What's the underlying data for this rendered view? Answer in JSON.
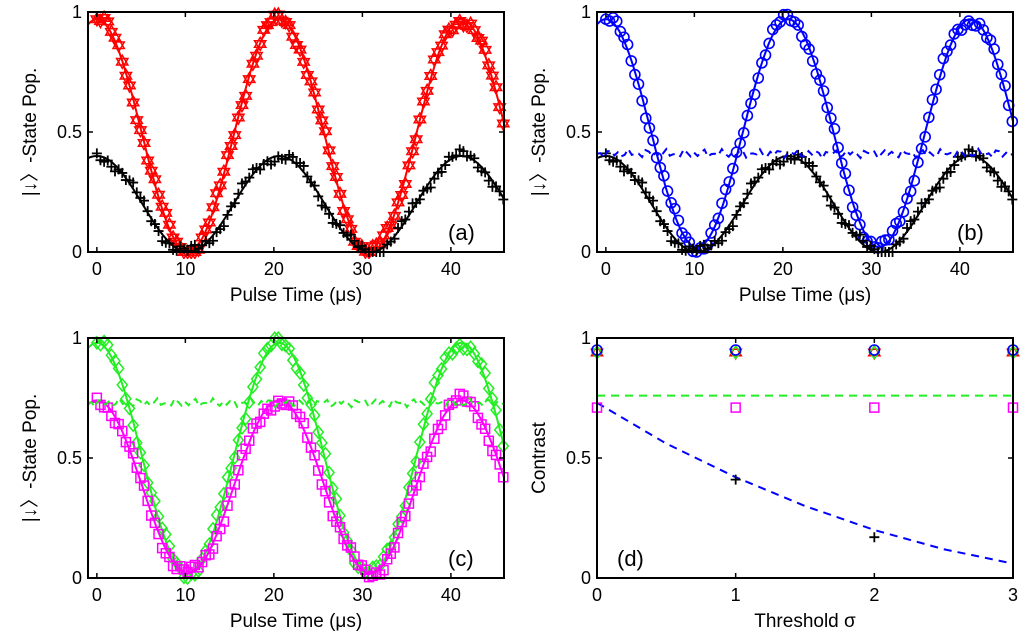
{
  "colors": {
    "red": "#ff0000",
    "blue": "#0000ff",
    "green": "#22ee22",
    "magenta": "#ff00ff",
    "black": "#000000"
  },
  "chart_data": [
    {
      "type": "scatter",
      "panel_label": "(a)",
      "xlabel": "Pulse Time (μs)",
      "ylabel": "|↓〉-State Pop.",
      "xlim": [
        -1,
        46
      ],
      "ylim": [
        0,
        1
      ],
      "xticks": [
        0,
        10,
        20,
        30,
        40
      ],
      "xtick_labels": [
        "0",
        "10",
        "20",
        "30",
        "40"
      ],
      "yticks": [
        0,
        0.5,
        1
      ],
      "ytick_labels": [
        "0",
        "0.5",
        "1"
      ],
      "series": [
        {
          "color": "red",
          "marker": "hexagram",
          "fit": "solid",
          "fit_model": {
            "period": 20.6,
            "low": 0.0,
            "high": 0.97,
            "phase": 0.0
          }
        },
        {
          "color": "black",
          "marker": "plus",
          "fit": "solid",
          "fit_model": {
            "period": 20.6,
            "low": 0.0,
            "high": 0.4,
            "phase": 0.0
          }
        }
      ]
    },
    {
      "type": "scatter",
      "panel_label": "(b)",
      "xlabel": "Pulse Time (μs)",
      "ylabel": "|↓〉-State Pop.",
      "xlim": [
        -1,
        46
      ],
      "ylim": [
        0,
        1
      ],
      "xticks": [
        0,
        10,
        20,
        30,
        40
      ],
      "xtick_labels": [
        "0",
        "10",
        "20",
        "30",
        "40"
      ],
      "yticks": [
        0,
        0.5,
        1
      ],
      "ytick_labels": [
        "0",
        "0.5",
        "1"
      ],
      "series": [
        {
          "color": "blue",
          "marker": "circle",
          "fit": "solid",
          "fit_model": {
            "period": 20.6,
            "low": 0.02,
            "high": 0.97,
            "phase": 0.0
          }
        },
        {
          "color": "black",
          "marker": "plus",
          "fit": "solid",
          "fit_model": {
            "period": 20.6,
            "low": 0.0,
            "high": 0.4,
            "phase": 0.0
          }
        },
        {
          "color": "blue",
          "marker": "none",
          "fit": "dashed",
          "flat_level": 0.41
        }
      ]
    },
    {
      "type": "scatter",
      "panel_label": "(c)",
      "xlabel": "Pulse Time (μs)",
      "ylabel": "|↓〉-State Pop.",
      "xlim": [
        -1,
        46
      ],
      "ylim": [
        0,
        1
      ],
      "xticks": [
        0,
        10,
        20,
        30,
        40
      ],
      "xtick_labels": [
        "0",
        "10",
        "20",
        "30",
        "40"
      ],
      "yticks": [
        0,
        0.5,
        1
      ],
      "ytick_labels": [
        "0",
        "0.5",
        "1"
      ],
      "series": [
        {
          "color": "green",
          "marker": "diamond",
          "fit": "solid",
          "fit_model": {
            "period": 20.6,
            "low": 0.02,
            "high": 0.98,
            "phase": 0.0
          }
        },
        {
          "color": "magenta",
          "marker": "square",
          "fit": "solid",
          "fit_model": {
            "period": 20.6,
            "low": 0.02,
            "high": 0.74,
            "phase": 0.0
          }
        },
        {
          "color": "green",
          "marker": "none",
          "fit": "dashed",
          "flat_level": 0.73
        }
      ]
    },
    {
      "type": "scatter",
      "panel_label": "(d)",
      "xlabel": "Threshold σ",
      "ylabel": "Contrast",
      "xlim": [
        0,
        3
      ],
      "ylim": [
        0,
        1
      ],
      "xticks": [
        0,
        1,
        2,
        3
      ],
      "xtick_labels": [
        "0",
        "1",
        "2",
        "3"
      ],
      "yticks": [
        0,
        0.5,
        1
      ],
      "ytick_labels": [
        "0",
        "0.5",
        "1"
      ],
      "points": [
        {
          "color": "red",
          "marker": "hexagram",
          "x": [
            0,
            1,
            2,
            3
          ],
          "y": [
            0.94,
            0.94,
            0.94,
            0.94
          ]
        },
        {
          "color": "green",
          "marker": "diamond",
          "x": [
            0,
            1,
            2,
            3
          ],
          "y": [
            0.94,
            0.94,
            0.94,
            0.94
          ]
        },
        {
          "color": "blue",
          "marker": "circle",
          "x": [
            0,
            1,
            2,
            3
          ],
          "y": [
            0.95,
            0.95,
            0.95,
            0.95
          ]
        },
        {
          "color": "magenta",
          "marker": "square",
          "x": [
            0,
            1,
            2,
            3
          ],
          "y": [
            0.71,
            0.71,
            0.71,
            0.71
          ]
        },
        {
          "color": "black",
          "marker": "plus",
          "x": [
            1,
            2
          ],
          "y": [
            0.41,
            0.17
          ]
        }
      ],
      "lines": [
        {
          "color": "green",
          "style": "dashed",
          "x": [
            0,
            3
          ],
          "y": [
            0.76,
            0.76
          ]
        },
        {
          "color": "blue",
          "style": "dashed",
          "x": [
            0,
            0.5,
            1,
            1.5,
            2,
            2.5,
            3
          ],
          "y": [
            0.73,
            0.56,
            0.42,
            0.3,
            0.2,
            0.12,
            0.06
          ]
        }
      ]
    }
  ]
}
